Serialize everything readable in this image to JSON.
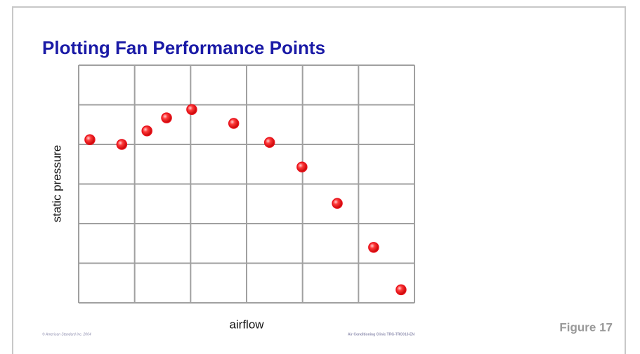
{
  "chart_data": {
    "type": "scatter",
    "title": "Plotting Fan Performance Points",
    "xlabel": "airflow",
    "ylabel": "static pressure",
    "x": [
      0.2,
      0.77,
      1.22,
      1.57,
      2.02,
      2.77,
      3.41,
      3.99,
      4.62,
      5.27,
      5.76
    ],
    "values": [
      4.12,
      4.0,
      4.34,
      4.67,
      4.88,
      4.53,
      4.05,
      3.43,
      2.51,
      1.4,
      0.33
    ],
    "color": "#e8101a",
    "xlim": [
      0,
      6
    ],
    "xticks": [
      0,
      1,
      2,
      3,
      4,
      5,
      6
    ],
    "ylim": [
      0,
      6
    ],
    "yticks": [
      0,
      1,
      2,
      3,
      4,
      5,
      6
    ],
    "grid": true
  },
  "footer": {
    "copyright": "© American Standard Inc. 2004",
    "course": "Air Conditioning Clinic TRG-TRC013-EN",
    "figure": "Figure 17"
  }
}
